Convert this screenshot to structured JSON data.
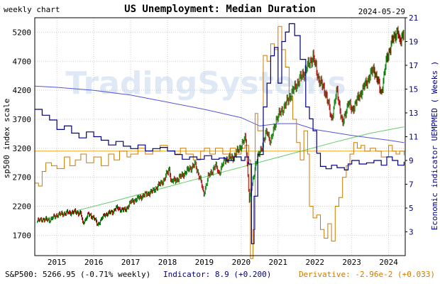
{
  "header": {
    "left_label": "weekly chart",
    "title": "US Unemployment: Median Duration",
    "date": "2024-05-29"
  },
  "watermark": "TradingSystems",
  "footer": {
    "sp500": "S&P500: 5266.95 (-0.71% weekly)",
    "indicator": "Indicator: 8.9 (+0.200)",
    "derivative": "Derivative: -2.96e-2 (+0.033)"
  },
  "colors": {
    "sp500_up": "#008000",
    "sp500_down": "#aa0000",
    "indicator": "#000080",
    "derivative": "#cc7a00",
    "trend": "#5555dd",
    "regression": "#66cc66",
    "hline": "#e6a800",
    "left_axis_label": "#000000",
    "right_axis_label": "#000080",
    "footer_indicator": "#000080",
    "footer_derivative": "#cc7a00"
  },
  "chart_data": {
    "type": "line",
    "left_axis": {
      "label": "sp500 index scale",
      "ticks": [
        1700,
        2200,
        2700,
        3200,
        3700,
        4200,
        4700,
        5200
      ],
      "range": [
        1350,
        5450
      ]
    },
    "right_axis": {
      "label": "Economic indicator UEMPMED ( Weeks )",
      "ticks": [
        3,
        5,
        7,
        9,
        11,
        13,
        15,
        17,
        19,
        21
      ],
      "range": [
        1.0,
        21.0
      ]
    },
    "x_axis": {
      "ticks": [
        "2015",
        "2016",
        "2017",
        "2018",
        "2019",
        "2020",
        "2021",
        "2022",
        "2023",
        "2024"
      ],
      "range": [
        2014.4,
        2024.45
      ]
    },
    "horizontal_line": 3150,
    "series": [
      {
        "name": "S&P500",
        "axis": "left",
        "style": "candles",
        "points": [
          [
            2014.45,
            1940
          ],
          [
            2014.6,
            1975
          ],
          [
            2014.8,
            1960
          ],
          [
            2015.0,
            2050
          ],
          [
            2015.3,
            2090
          ],
          [
            2015.5,
            2100
          ],
          [
            2015.65,
            2080
          ],
          [
            2015.7,
            1900
          ],
          [
            2015.85,
            2060
          ],
          [
            2016.0,
            2010
          ],
          [
            2016.1,
            1880
          ],
          [
            2016.3,
            2060
          ],
          [
            2016.5,
            2100
          ],
          [
            2016.6,
            2170
          ],
          [
            2016.85,
            2130
          ],
          [
            2017.0,
            2270
          ],
          [
            2017.3,
            2370
          ],
          [
            2017.6,
            2460
          ],
          [
            2017.9,
            2650
          ],
          [
            2018.05,
            2850
          ],
          [
            2018.1,
            2620
          ],
          [
            2018.3,
            2680
          ],
          [
            2018.6,
            2850
          ],
          [
            2018.75,
            2920
          ],
          [
            2018.9,
            2650
          ],
          [
            2018.98,
            2400
          ],
          [
            2019.1,
            2700
          ],
          [
            2019.3,
            2900
          ],
          [
            2019.4,
            2770
          ],
          [
            2019.55,
            3000
          ],
          [
            2019.8,
            3050
          ],
          [
            2020.0,
            3250
          ],
          [
            2020.12,
            3380
          ],
          [
            2020.22,
            2300
          ],
          [
            2020.4,
            2950
          ],
          [
            2020.6,
            3300
          ],
          [
            2020.7,
            3500
          ],
          [
            2020.8,
            3300
          ],
          [
            2020.95,
            3700
          ],
          [
            2021.2,
            3950
          ],
          [
            2021.5,
            4300
          ],
          [
            2021.7,
            4500
          ],
          [
            2021.95,
            4780
          ],
          [
            2022.1,
            4400
          ],
          [
            2022.3,
            4150
          ],
          [
            2022.45,
            3700
          ],
          [
            2022.6,
            4200
          ],
          [
            2022.75,
            3600
          ],
          [
            2022.9,
            4000
          ],
          [
            2023.0,
            3850
          ],
          [
            2023.2,
            4100
          ],
          [
            2023.45,
            4400
          ],
          [
            2023.6,
            4580
          ],
          [
            2023.8,
            4150
          ],
          [
            2023.95,
            4750
          ],
          [
            2024.1,
            5050
          ],
          [
            2024.25,
            5250
          ],
          [
            2024.3,
            4980
          ],
          [
            2024.42,
            5270
          ]
        ]
      },
      {
        "name": "Indicator",
        "axis": "right",
        "style": "step",
        "points": [
          [
            2014.4,
            13.3
          ],
          [
            2014.6,
            12.8
          ],
          [
            2014.8,
            12.4
          ],
          [
            2015.0,
            11.6
          ],
          [
            2015.2,
            11.9
          ],
          [
            2015.4,
            11.3
          ],
          [
            2015.6,
            10.9
          ],
          [
            2015.8,
            11.4
          ],
          [
            2016.0,
            11.0
          ],
          [
            2016.2,
            10.7
          ],
          [
            2016.4,
            10.3
          ],
          [
            2016.6,
            10.6
          ],
          [
            2016.8,
            10.2
          ],
          [
            2017.0,
            10.0
          ],
          [
            2017.2,
            10.3
          ],
          [
            2017.4,
            9.8
          ],
          [
            2017.6,
            10.0
          ],
          [
            2017.8,
            10.1
          ],
          [
            2018.0,
            9.8
          ],
          [
            2018.2,
            9.5
          ],
          [
            2018.4,
            9.1
          ],
          [
            2018.6,
            9.3
          ],
          [
            2018.8,
            9.1
          ],
          [
            2019.0,
            9.4
          ],
          [
            2019.2,
            9.1
          ],
          [
            2019.4,
            9.2
          ],
          [
            2019.6,
            9.0
          ],
          [
            2019.8,
            9.3
          ],
          [
            2020.0,
            9.0
          ],
          [
            2020.1,
            9.3
          ],
          [
            2020.2,
            8.7
          ],
          [
            2020.28,
            2.0
          ],
          [
            2020.35,
            6.0
          ],
          [
            2020.45,
            9.5
          ],
          [
            2020.6,
            13.5
          ],
          [
            2020.7,
            15.5
          ],
          [
            2020.8,
            17.8
          ],
          [
            2020.9,
            18.5
          ],
          [
            2021.0,
            15.5
          ],
          [
            2021.1,
            19.0
          ],
          [
            2021.2,
            19.8
          ],
          [
            2021.3,
            20.5
          ],
          [
            2021.45,
            19.5
          ],
          [
            2021.6,
            17.5
          ],
          [
            2021.75,
            13.5
          ],
          [
            2021.85,
            12.5
          ],
          [
            2021.95,
            11.5
          ],
          [
            2022.05,
            9.6
          ],
          [
            2022.15,
            8.5
          ],
          [
            2022.3,
            8.3
          ],
          [
            2022.45,
            8.6
          ],
          [
            2022.6,
            8.4
          ],
          [
            2022.8,
            8.2
          ],
          [
            2022.9,
            8.7
          ],
          [
            2023.0,
            9.0
          ],
          [
            2023.2,
            8.7
          ],
          [
            2023.4,
            8.8
          ],
          [
            2023.6,
            9.0
          ],
          [
            2023.8,
            8.6
          ],
          [
            2023.95,
            9.3
          ],
          [
            2024.1,
            9.0
          ],
          [
            2024.25,
            8.6
          ],
          [
            2024.42,
            8.9
          ]
        ]
      },
      {
        "name": "Derivative",
        "axis": "left",
        "style": "step",
        "points": [
          [
            2014.4,
            2600
          ],
          [
            2014.5,
            2550
          ],
          [
            2014.6,
            2800
          ],
          [
            2014.7,
            2950
          ],
          [
            2014.85,
            2900
          ],
          [
            2015.0,
            2850
          ],
          [
            2015.2,
            3050
          ],
          [
            2015.35,
            2900
          ],
          [
            2015.5,
            3000
          ],
          [
            2015.65,
            3100
          ],
          [
            2015.8,
            2950
          ],
          [
            2016.0,
            3050
          ],
          [
            2016.2,
            2900
          ],
          [
            2016.4,
            3100
          ],
          [
            2016.55,
            3000
          ],
          [
            2016.7,
            3150
          ],
          [
            2016.9,
            3050
          ],
          [
            2017.0,
            3100
          ],
          [
            2017.2,
            3200
          ],
          [
            2017.4,
            3100
          ],
          [
            2017.6,
            3150
          ],
          [
            2017.8,
            3250
          ],
          [
            2018.0,
            3150
          ],
          [
            2018.2,
            3100
          ],
          [
            2018.35,
            3200
          ],
          [
            2018.5,
            3100
          ],
          [
            2018.7,
            3000
          ],
          [
            2018.9,
            3150
          ],
          [
            2019.0,
            3200
          ],
          [
            2019.15,
            3100
          ],
          [
            2019.3,
            3200
          ],
          [
            2019.5,
            3100
          ],
          [
            2019.7,
            3200
          ],
          [
            2019.85,
            3100
          ],
          [
            2020.0,
            3200
          ],
          [
            2020.1,
            3250
          ],
          [
            2020.2,
            3000
          ],
          [
            2020.25,
            1300
          ],
          [
            2020.32,
            1800
          ],
          [
            2020.38,
            3800
          ],
          [
            2020.45,
            3500
          ],
          [
            2020.6,
            4800
          ],
          [
            2020.7,
            4700
          ],
          [
            2020.8,
            5000
          ],
          [
            2020.9,
            4900
          ],
          [
            2021.0,
            5300
          ],
          [
            2021.1,
            4900
          ],
          [
            2021.2,
            4600
          ],
          [
            2021.3,
            4100
          ],
          [
            2021.4,
            3700
          ],
          [
            2021.5,
            3300
          ],
          [
            2021.6,
            3000
          ],
          [
            2021.7,
            3500
          ],
          [
            2021.8,
            3100
          ],
          [
            2021.85,
            2200
          ],
          [
            2021.95,
            2000
          ],
          [
            2022.05,
            2050
          ],
          [
            2022.15,
            1800
          ],
          [
            2022.25,
            1650
          ],
          [
            2022.35,
            1900
          ],
          [
            2022.45,
            1600
          ],
          [
            2022.55,
            2200
          ],
          [
            2022.65,
            2350
          ],
          [
            2022.75,
            2700
          ],
          [
            2022.85,
            2900
          ],
          [
            2022.95,
            3100
          ],
          [
            2023.05,
            3300
          ],
          [
            2023.15,
            3200
          ],
          [
            2023.25,
            3250
          ],
          [
            2023.35,
            3150
          ],
          [
            2023.5,
            3200
          ],
          [
            2023.65,
            3150
          ],
          [
            2023.8,
            3050
          ],
          [
            2024.0,
            3250
          ],
          [
            2024.1,
            3150
          ],
          [
            2024.2,
            3100
          ],
          [
            2024.3,
            3150
          ],
          [
            2024.42,
            3080
          ]
        ]
      },
      {
        "name": "Trend",
        "axis": "right",
        "style": "line",
        "points": [
          [
            2014.4,
            15.25
          ],
          [
            2015.0,
            15.15
          ],
          [
            2016.0,
            14.9
          ],
          [
            2017.0,
            14.5
          ],
          [
            2018.0,
            13.9
          ],
          [
            2019.0,
            13.3
          ],
          [
            2020.0,
            12.6
          ],
          [
            2020.5,
            11.9
          ],
          [
            2021.0,
            12.1
          ],
          [
            2021.5,
            12.1
          ],
          [
            2022.0,
            11.6
          ],
          [
            2023.0,
            11.1
          ],
          [
            2024.0,
            10.7
          ],
          [
            2024.42,
            10.5
          ]
        ]
      },
      {
        "name": "Regression",
        "axis": "left",
        "style": "line",
        "points": [
          [
            2014.5,
            1960
          ],
          [
            2015.5,
            2120
          ],
          [
            2016.5,
            2280
          ],
          [
            2017.5,
            2450
          ],
          [
            2018.5,
            2620
          ],
          [
            2019.5,
            2790
          ],
          [
            2020.5,
            2960
          ],
          [
            2021.5,
            3130
          ],
          [
            2022.5,
            3300
          ],
          [
            2023.5,
            3460
          ],
          [
            2024.42,
            3570
          ]
        ]
      }
    ]
  }
}
